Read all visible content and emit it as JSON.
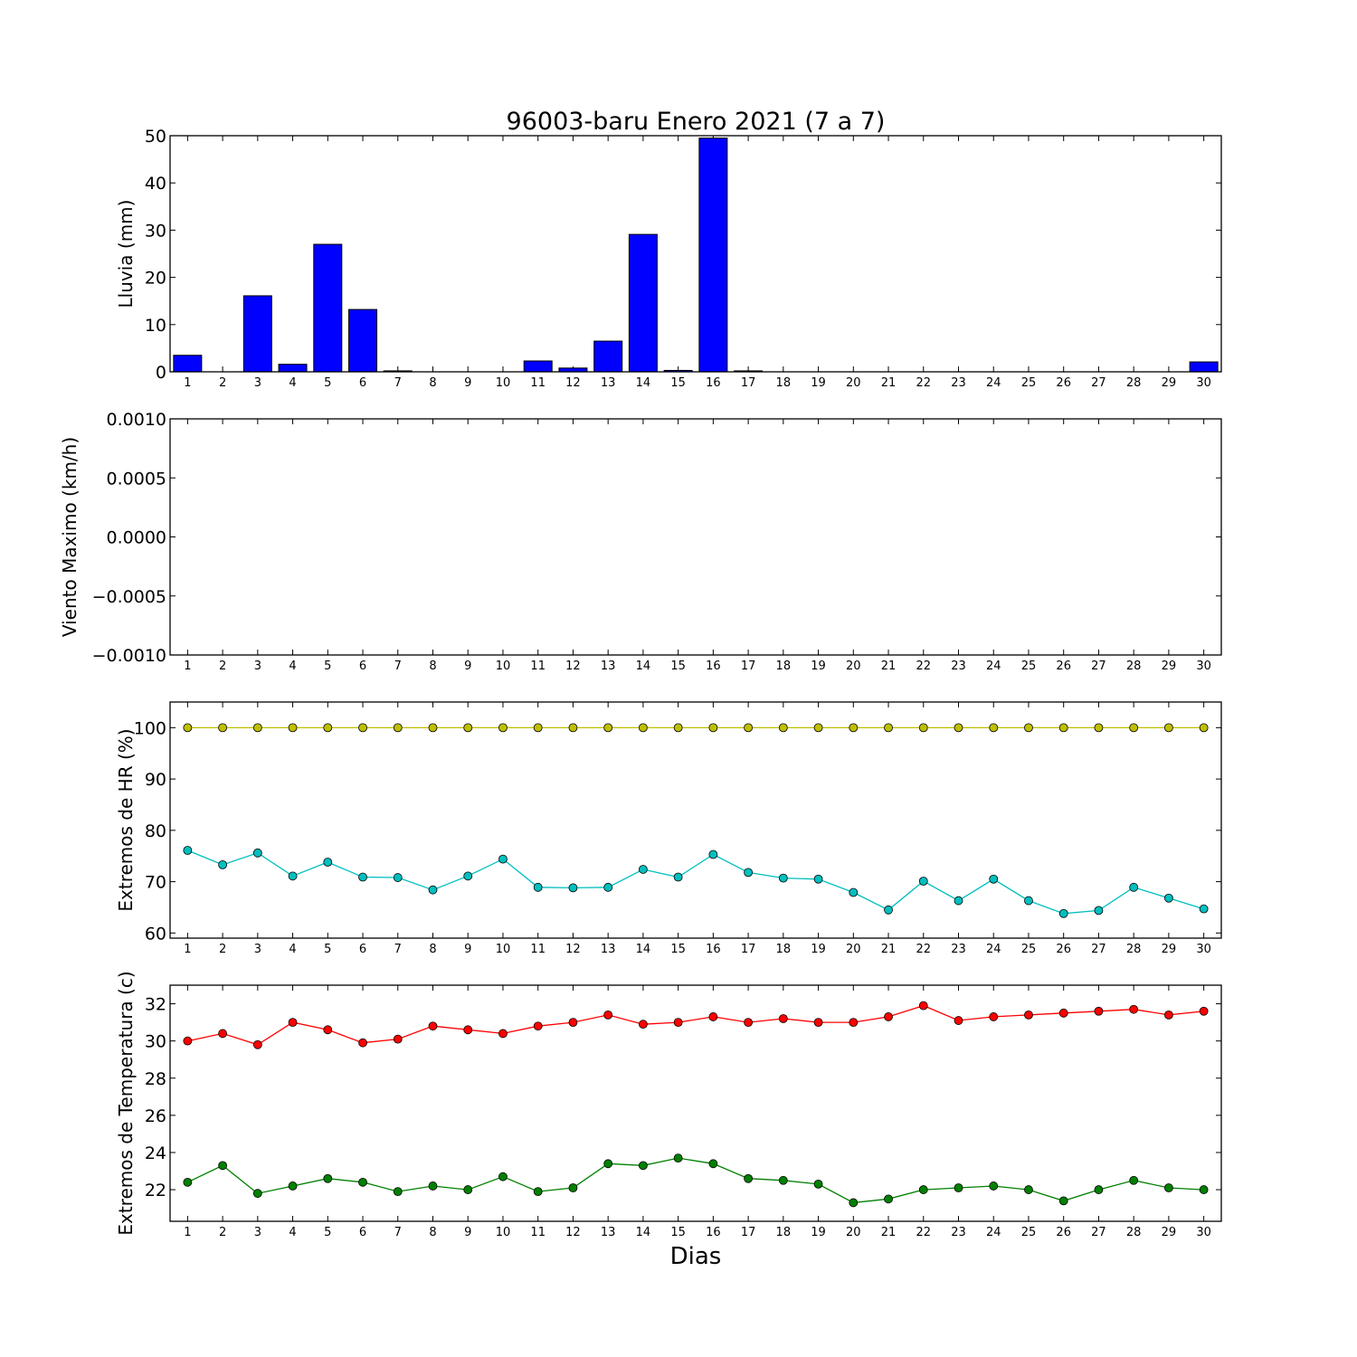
{
  "title": "96003-baru Enero 2021  (7 a 7)",
  "xlabel": "Dias",
  "colors": {
    "bar": "#0000ff",
    "hr_max": "#bfbf00",
    "hr_min": "#00bfbf",
    "temp_max": "#ff0000",
    "temp_min": "#008000"
  },
  "chart_data": [
    {
      "type": "bar",
      "ylabel": "Lluvia (mm)",
      "ylim": [
        0,
        50
      ],
      "yticks": [
        0,
        10,
        20,
        30,
        40,
        50
      ],
      "ytick_labels": [
        "0",
        "10",
        "20",
        "30",
        "40",
        "50"
      ],
      "categories": [
        "1",
        "2",
        "3",
        "4",
        "5",
        "6",
        "7",
        "8",
        "9",
        "10",
        "11",
        "12",
        "13",
        "14",
        "15",
        "16",
        "17",
        "18",
        "19",
        "20",
        "21",
        "22",
        "23",
        "24",
        "25",
        "26",
        "27",
        "28",
        "29",
        "30"
      ],
      "series": [
        {
          "values": [
            3.5,
            0,
            16.1,
            1.6,
            27.0,
            13.2,
            0.2,
            0,
            0,
            0,
            2.3,
            0.8,
            6.5,
            29.1,
            0.3,
            49.5,
            0.2,
            0,
            0,
            0,
            0,
            0,
            0,
            0,
            0,
            0,
            0,
            0,
            0,
            2.1
          ]
        }
      ]
    },
    {
      "type": "line",
      "ylabel": "Viento Maximo (km/h)",
      "ylim": [
        -0.001,
        0.001
      ],
      "yticks": [
        -0.001,
        -0.0005,
        0,
        0.0005,
        0.001
      ],
      "ytick_labels": [
        "−0.0010",
        "−0.0005",
        "0.0000",
        "0.0005",
        "0.0010"
      ],
      "categories": [
        "1",
        "2",
        "3",
        "4",
        "5",
        "6",
        "7",
        "8",
        "9",
        "10",
        "11",
        "12",
        "13",
        "14",
        "15",
        "16",
        "17",
        "18",
        "19",
        "20",
        "21",
        "22",
        "23",
        "24",
        "25",
        "26",
        "27",
        "28",
        "29",
        "30"
      ],
      "series": []
    },
    {
      "type": "line",
      "ylabel": "Extremos de HR (%)",
      "ylim": [
        59,
        105
      ],
      "yticks": [
        60,
        70,
        80,
        90,
        100
      ],
      "ytick_labels": [
        "60",
        "70",
        "80",
        "90",
        "100"
      ],
      "categories": [
        "1",
        "2",
        "3",
        "4",
        "5",
        "6",
        "7",
        "8",
        "9",
        "10",
        "11",
        "12",
        "13",
        "14",
        "15",
        "16",
        "17",
        "18",
        "19",
        "20",
        "21",
        "22",
        "23",
        "24",
        "25",
        "26",
        "27",
        "28",
        "29",
        "30"
      ],
      "series": [
        {
          "values": [
            100,
            100,
            100,
            100,
            100,
            100,
            100,
            100,
            100,
            100,
            100,
            100,
            100,
            100,
            100,
            100,
            100,
            100,
            100,
            100,
            100,
            100,
            100,
            100,
            100,
            100,
            100,
            100,
            100,
            100
          ]
        },
        {
          "values": [
            76.1,
            73.3,
            75.6,
            71.1,
            73.8,
            70.9,
            70.8,
            68.4,
            71.1,
            74.4,
            68.9,
            68.8,
            68.9,
            72.4,
            70.9,
            75.3,
            71.8,
            70.7,
            70.5,
            67.9,
            64.5,
            70.1,
            66.3,
            70.5,
            66.3,
            63.8,
            64.4,
            68.9,
            66.8,
            64.7
          ]
        }
      ]
    },
    {
      "type": "line",
      "ylabel": "Extremos de Temperatura (c)",
      "ylim": [
        20.3,
        33.0
      ],
      "yticks": [
        22,
        24,
        26,
        28,
        30,
        32
      ],
      "ytick_labels": [
        "22",
        "24",
        "26",
        "28",
        "30",
        "32"
      ],
      "categories": [
        "1",
        "2",
        "3",
        "4",
        "5",
        "6",
        "7",
        "8",
        "9",
        "10",
        "11",
        "12",
        "13",
        "14",
        "15",
        "16",
        "17",
        "18",
        "19",
        "20",
        "21",
        "22",
        "23",
        "24",
        "25",
        "26",
        "27",
        "28",
        "29",
        "30"
      ],
      "series": [
        {
          "values": [
            30.0,
            30.4,
            29.8,
            31.0,
            30.6,
            29.9,
            30.1,
            30.8,
            30.6,
            30.4,
            30.8,
            31.0,
            31.4,
            30.9,
            31.0,
            31.3,
            31.0,
            31.2,
            31.0,
            31.0,
            31.3,
            31.9,
            31.1,
            31.3,
            31.4,
            31.5,
            31.6,
            31.7,
            31.4,
            31.6
          ]
        },
        {
          "values": [
            22.4,
            23.3,
            21.8,
            22.2,
            22.6,
            22.4,
            21.9,
            22.2,
            22.0,
            22.7,
            21.9,
            22.1,
            23.4,
            23.3,
            23.7,
            23.4,
            22.6,
            22.5,
            22.3,
            21.3,
            21.5,
            22.0,
            22.1,
            22.2,
            22.0,
            21.4,
            22.0,
            22.5,
            22.1,
            22.0
          ]
        }
      ]
    }
  ]
}
